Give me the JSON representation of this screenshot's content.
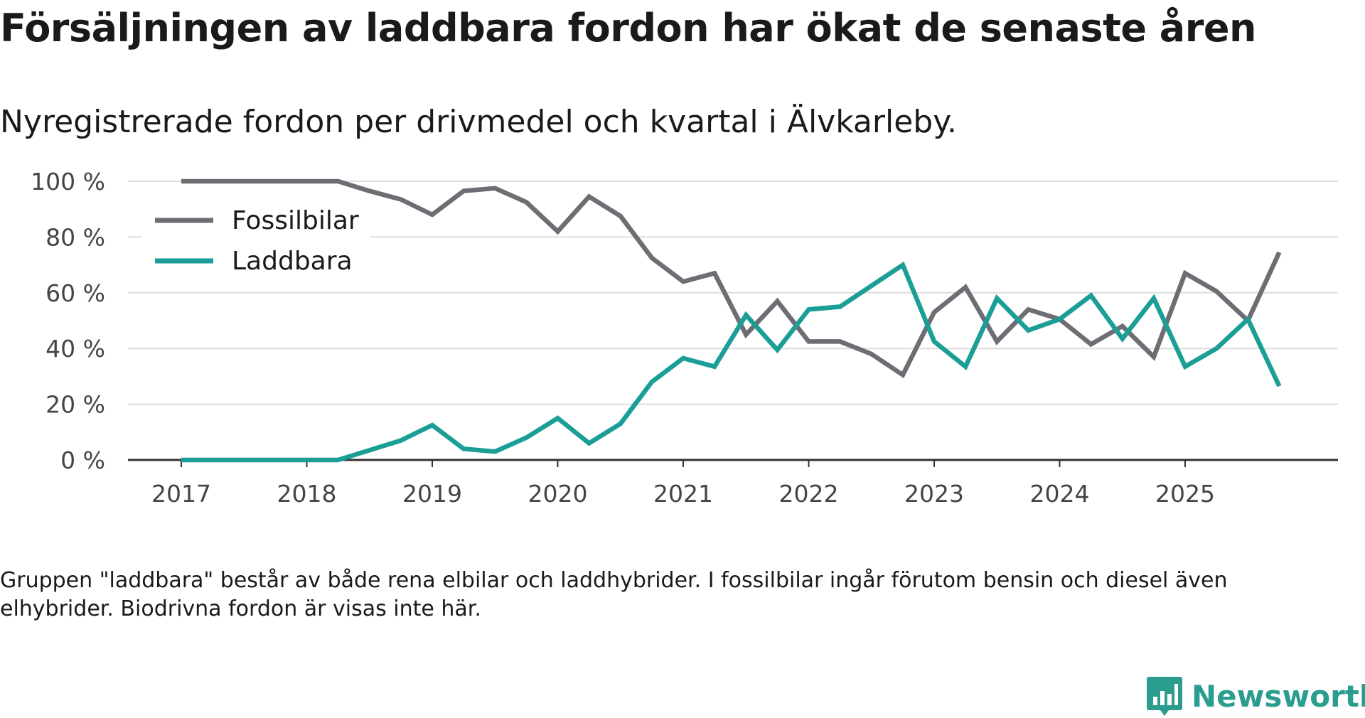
{
  "title": "Försäljningen av laddbara fordon har ökat de senaste åren",
  "subtitle": "Nyregistrerade fordon per drivmedel och kvartal i Älvkarleby.",
  "footnote": "Gruppen \"laddbara\" består av både rena elbilar och laddhybrider. I fossilbilar ingår förutom bensin och diesel även elhybrider. Biodrivna fordon är visas inte här.",
  "brand": {
    "name": "Newsworthy",
    "icon": "newsworthy-logo-icon",
    "color": "#2a9d8f"
  },
  "chart_data": {
    "type": "line",
    "title": "Nyregistrerade fordon per drivmedel och kvartal i Älvkarleby.",
    "xlabel": "",
    "ylabel": "",
    "x_start": 2017,
    "x_step": 0.25,
    "x_ticks": [
      2017,
      2018,
      2019,
      2020,
      2021,
      2022,
      2023,
      2024,
      2025
    ],
    "x_tick_labels": [
      "2017",
      "2018",
      "2019",
      "2020",
      "2021",
      "2022",
      "2023",
      "2024",
      "2025"
    ],
    "y_ticks": [
      0,
      20,
      40,
      60,
      80,
      100
    ],
    "y_tick_labels": [
      "0 %",
      "20 %",
      "40 %",
      "60 %",
      "80 %",
      "100 %"
    ],
    "ylim": [
      0,
      100
    ],
    "grid": true,
    "legend_position": "top-left",
    "series": [
      {
        "name": "Fossilbilar",
        "color": "#6e6d73",
        "values": [
          100,
          100,
          100,
          100,
          100,
          100,
          96.5,
          93.5,
          88,
          96.5,
          97.5,
          92.5,
          82,
          94.5,
          87.5,
          72.5,
          64,
          67,
          45,
          57,
          42.5,
          42.5,
          38,
          30.5,
          53,
          62,
          42.5,
          54,
          50.5,
          41.5,
          48,
          37,
          67,
          60.5,
          50,
          74.5
        ]
      },
      {
        "name": "Laddbara",
        "color": "#1a9e96",
        "values": [
          0,
          0,
          0,
          0,
          0,
          0,
          3.5,
          7,
          12.5,
          4,
          3,
          8,
          15,
          6,
          13,
          28,
          36.5,
          33.5,
          52,
          39.5,
          54,
          55,
          62.5,
          70,
          42.5,
          33.5,
          58,
          46.5,
          50.5,
          59,
          43.5,
          58,
          33.5,
          40,
          50.5,
          26.5
        ]
      }
    ]
  }
}
